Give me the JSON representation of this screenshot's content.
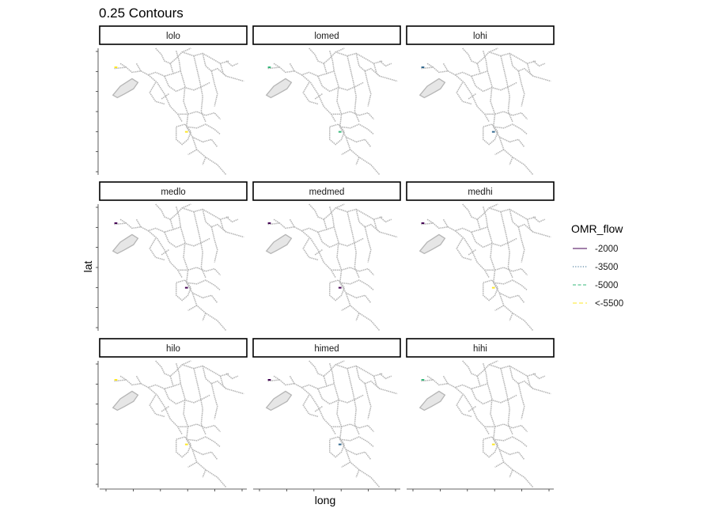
{
  "chart_data": {
    "type": "map-facets",
    "title": "0.25 Contours",
    "xlabel": "long",
    "ylabel": "lat",
    "facets": [
      "lolo",
      "lomed",
      "lohi",
      "medlo",
      "medmed",
      "medhi",
      "hilo",
      "himed",
      "hihi"
    ],
    "legend": {
      "title": "OMR_flow",
      "placement": "right",
      "entries": [
        {
          "label": "-2000",
          "color": "#440154",
          "dash": "solid"
        },
        {
          "label": "-3500",
          "color": "#31688e",
          "dash": "dotted"
        },
        {
          "label": "-5000",
          "color": "#35b779",
          "dash": "dashed"
        },
        {
          "label": "<-5500",
          "color": "#fde725",
          "dash": "longdash"
        }
      ]
    },
    "contour_markers": {
      "lolo": {
        "north": "<-5500",
        "south": "<-5500"
      },
      "lomed": {
        "north": "-5000",
        "south": "-5000"
      },
      "lohi": {
        "north": "-3500",
        "south": "-3500"
      },
      "medlo": {
        "north": "-2000",
        "south": "-2000"
      },
      "medmed": {
        "north": "-2000",
        "south": "-2000"
      },
      "medhi": {
        "north": "-2000",
        "south": "<-5500"
      },
      "hilo": {
        "north": "<-5500",
        "south": "<-5500"
      },
      "himed": {
        "north": "-2000",
        "south": "-3500"
      },
      "hihi": {
        "north": "-5000",
        "south": "<-5500"
      }
    },
    "grid": false,
    "map_color": "#b5b5b5",
    "map_fill": "#e6e6e6"
  }
}
